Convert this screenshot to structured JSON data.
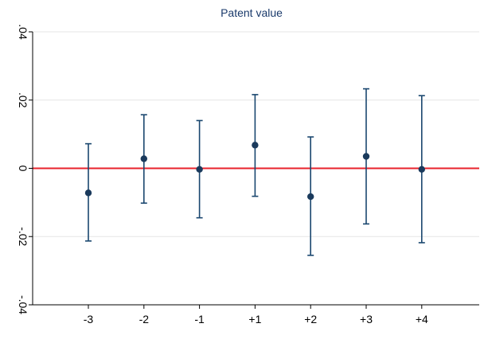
{
  "chart_data": {
    "type": "scatter",
    "title": "Patent value",
    "xlabel": "",
    "ylabel": "",
    "categories": [
      "-3",
      "-2",
      "-1",
      "+1",
      "+2",
      "+3",
      "+4"
    ],
    "series": [
      {
        "values": [
          -0.0072,
          0.0028,
          -0.0003,
          0.0068,
          -0.0083,
          0.0035,
          -0.0003
        ],
        "ci_lower": [
          -0.0213,
          -0.0102,
          -0.0145,
          -0.0082,
          -0.0255,
          -0.0163,
          -0.0218
        ],
        "ci_upper": [
          0.0072,
          0.0157,
          0.014,
          0.0216,
          0.0092,
          0.0233,
          0.0213
        ]
      }
    ],
    "ylim": [
      -0.04,
      0.04
    ],
    "yticks": [
      -0.04,
      -0.02,
      0,
      0.02,
      0.04
    ],
    "ytick_labels": [
      "-.04",
      "-.02",
      "0",
      ".02",
      ".04"
    ],
    "reference_line": {
      "y": 0,
      "color": "#e8222b"
    },
    "grid": true,
    "colors": {
      "marker": "#1a3a5c",
      "ci": "#1a476f",
      "title": "#1a3a6b",
      "grid": "#e6e6e6"
    }
  }
}
